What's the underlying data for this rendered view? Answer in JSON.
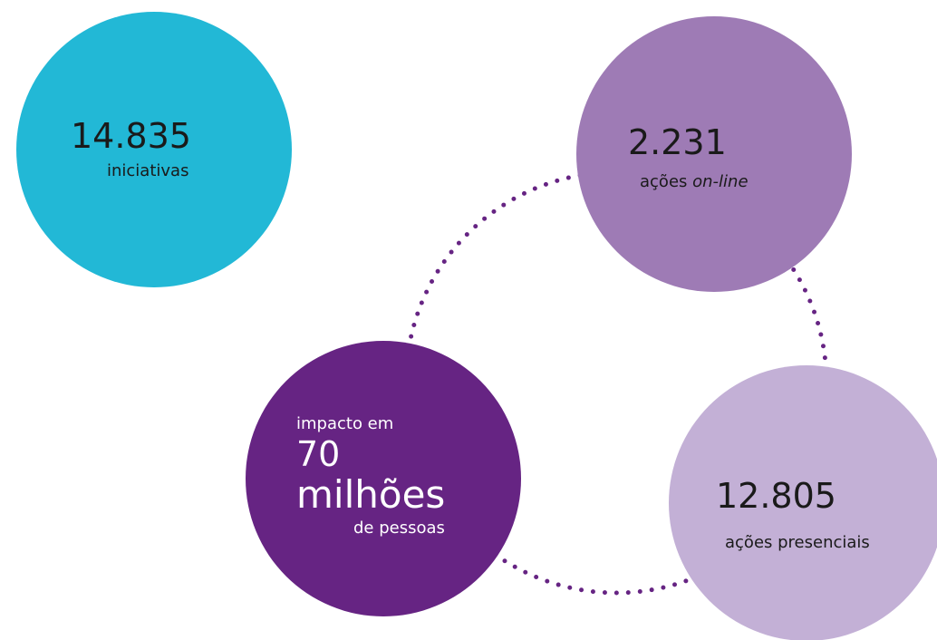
{
  "nodes": [
    {
      "value": "14.835",
      "label": "iniciativas",
      "color": "#22b8d6"
    },
    {
      "value": "2.231",
      "label": "ações",
      "label_emphasis": "on-line",
      "color": "#9e7bb5"
    },
    {
      "label_top": "impacto em",
      "value": "70",
      "unit": "milhões",
      "label": "de pessoas",
      "color": "#662483"
    },
    {
      "value": "12.805",
      "label": "ações presenciais",
      "color": "#c3b0d6"
    }
  ]
}
